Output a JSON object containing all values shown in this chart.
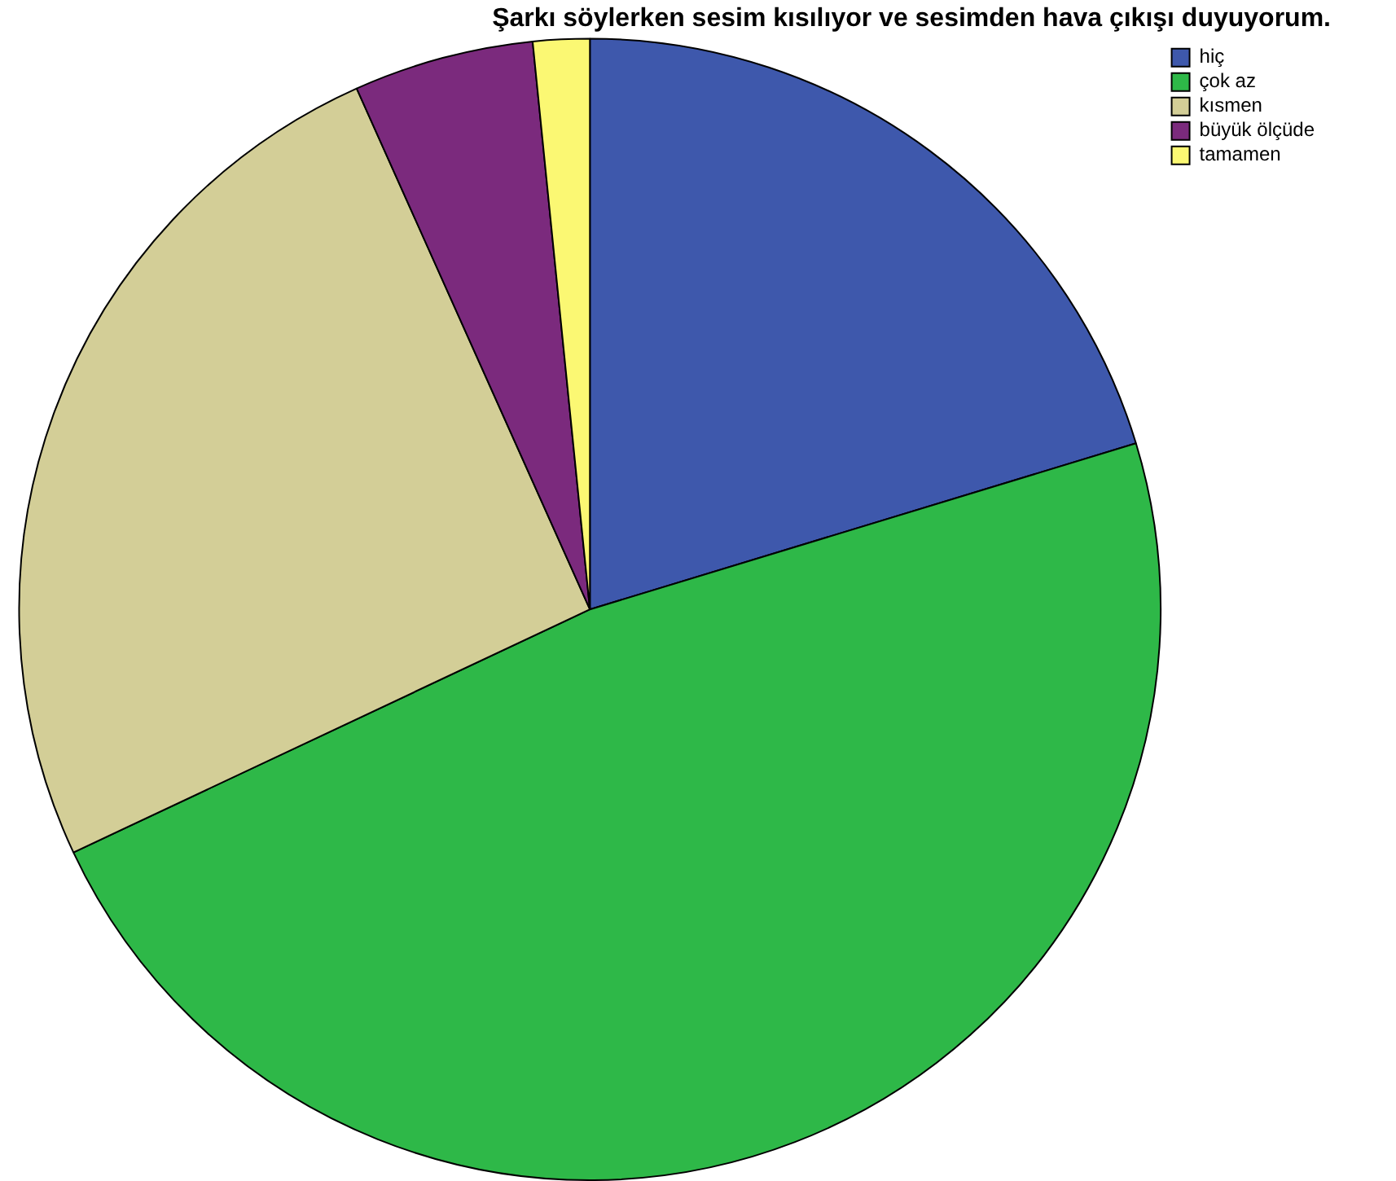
{
  "chart_data": {
    "type": "pie",
    "title": "Şarkı söylerken sesim kısılıyor ve sesimden hava çıkışı duyuyorum.",
    "categories": [
      "hiç",
      "çok az",
      "kısmen",
      "büyük ölçüde",
      "tamamen"
    ],
    "values": [
      20.3,
      47.7,
      25.3,
      5.1,
      1.6
    ],
    "colors": [
      "#3e58ac",
      "#2eb848",
      "#d3ce97",
      "#7b2a7d",
      "#fbf873"
    ],
    "legend": "top right"
  }
}
